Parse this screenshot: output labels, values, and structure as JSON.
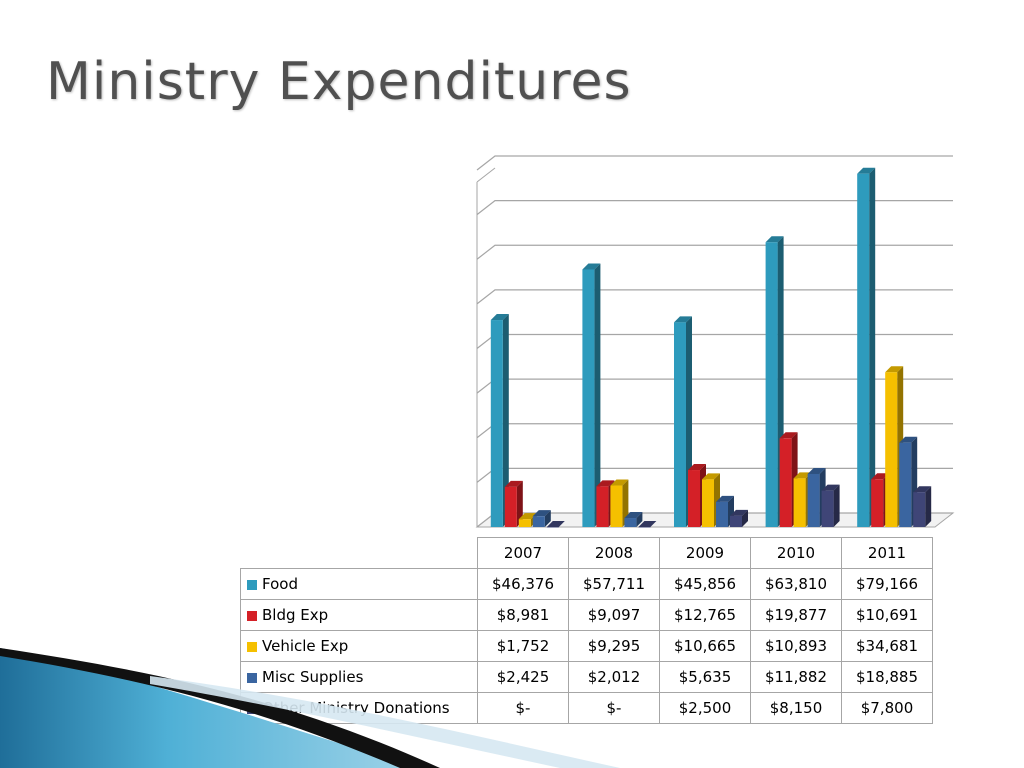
{
  "slide": {
    "title": "Ministry Expenditures"
  },
  "chart_data": {
    "type": "bar",
    "title": "",
    "xlabel": "",
    "ylabel": "",
    "ylim": [
      0,
      80000
    ],
    "grid": true,
    "legend_placement": "table-below",
    "categories": [
      "2007",
      "2008",
      "2009",
      "2010",
      "2011"
    ],
    "series": [
      {
        "name": "Food",
        "color": "#2e9bbd",
        "values": [
          46376,
          57711,
          45856,
          63810,
          79166
        ],
        "labels": [
          "$46,376",
          "$57,711",
          "$45,856",
          "$63,810",
          "$79,166"
        ]
      },
      {
        "name": "Bldg Exp",
        "color": "#d42027",
        "values": [
          8981,
          9097,
          12765,
          19877,
          10691
        ],
        "labels": [
          "$8,981",
          "$9,097",
          "$12,765",
          "$19,877",
          "$10,691"
        ]
      },
      {
        "name": "Vehicle Exp",
        "color": "#f5c000",
        "values": [
          1752,
          9295,
          10665,
          10893,
          34681
        ],
        "labels": [
          "$1,752",
          "$9,295",
          "$10,665",
          "$10,893",
          "$34,681"
        ]
      },
      {
        "name": "Misc Supplies",
        "color": "#3a65a0",
        "values": [
          2425,
          2012,
          5635,
          11882,
          18885
        ],
        "labels": [
          "$2,425",
          "$2,012",
          "$5,635",
          "$11,882",
          "$18,885"
        ]
      },
      {
        "name": "Other Ministry Donations",
        "color": "#3f4577",
        "values": [
          0,
          0,
          2500,
          8150,
          7800
        ],
        "labels": [
          "$-",
          "$-",
          "$2,500",
          "$8,150",
          "$7,800"
        ]
      }
    ]
  }
}
